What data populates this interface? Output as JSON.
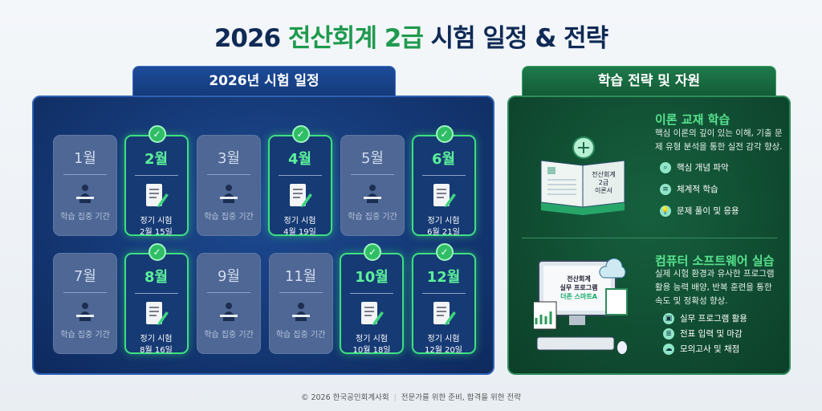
{
  "title": {
    "prefix": "2026 ",
    "highlight": "전산회계 2급",
    "suffix": " 시험 일정 & 전략"
  },
  "schedule": {
    "header": "2026년 시험 일정",
    "months": [
      {
        "month": "1월",
        "type": "study",
        "label": "학습 집중 기간"
      },
      {
        "month": "2월",
        "type": "exam",
        "label": "정기 시험",
        "date": "2월 15일"
      },
      {
        "month": "3월",
        "type": "study",
        "label": "학습 집중 기간"
      },
      {
        "month": "4월",
        "type": "exam",
        "label": "정기 시험",
        "date": "4월 19일"
      },
      {
        "month": "5월",
        "type": "study",
        "label": "학습 집중 기간"
      },
      {
        "month": "6월",
        "type": "exam",
        "label": "정기 시험",
        "date": "6월 21일"
      },
      {
        "month": "7월",
        "type": "study",
        "label": "학습 집중 기간"
      },
      {
        "month": "8월",
        "type": "exam",
        "label": "정기 시험",
        "date": "8월 16일"
      },
      {
        "month": "9월",
        "type": "study",
        "label": "학습 집중 기간"
      },
      {
        "month": "11월",
        "type": "study",
        "label": "학습 집중 기간"
      },
      {
        "month": "10월",
        "type": "exam",
        "label": "정기 시험",
        "date": "10월 18일"
      },
      {
        "month": "12월",
        "type": "exam",
        "label": "정기 시험",
        "date": "12월 20일"
      }
    ]
  },
  "strategy": {
    "header": "학습 전략 및 자원",
    "theory": {
      "title": "이론 교재 학습",
      "desc": "핵심 이론의 깊이 있는 이해, 기출 문제 유형 분석을 통한 실전 감각 향상.",
      "book_text": "전산회계 2급 이론서",
      "items": [
        "핵심 개념 파악",
        "체계적 학습",
        "문제 풀이 및 응용"
      ]
    },
    "software": {
      "title": "컴퓨터 소프트웨어 실습",
      "desc": "실제 시험 환경과 유사한 프로그램 활용 능력 배양, 반복 훈련을 통한 속도 및 정확성 향상.",
      "screen_text": "전산회계 실무 프로그램 더존 스마트A",
      "items": [
        "실무 프로그램 활용",
        "전표 입력 및 마감",
        "모의고사 및 채점"
      ]
    }
  },
  "footer": {
    "copyright": "© 2026 한국공인회계사회",
    "tagline": "전문가를 위한 준비, 합격을 위한 전략"
  },
  "colors": {
    "navy": "#0f2a55",
    "green": "#1f9a4e",
    "active_border": "#3ee081"
  }
}
